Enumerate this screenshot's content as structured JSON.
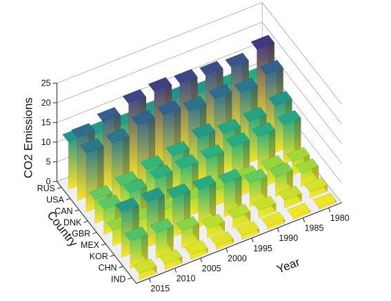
{
  "chart_data": {
    "type": "bar3d",
    "title": "",
    "zlabel": "CO2 Emissions",
    "country_label": "Country",
    "year_label": "Year",
    "zlim": [
      0,
      25
    ],
    "z_ticks": [
      "0",
      "5",
      "10",
      "15",
      "20",
      "25"
    ],
    "grid": true,
    "colormap": "viridis",
    "countries": [
      "RUS",
      "USA",
      "CAN",
      "DNK",
      "GBR",
      "MEX",
      "KOR",
      "CHN",
      "IND"
    ],
    "years": [
      "1980",
      "1985",
      "1990",
      "1995",
      "2000",
      "2005",
      "2010",
      "2015"
    ],
    "year_ticks": [
      "1980",
      "1985",
      "1990",
      "1995",
      "2000",
      "2005",
      "2010",
      "2015"
    ],
    "series": [
      {
        "name": "RUS",
        "values": [
          9.5,
          10.5,
          11.5,
          12.5,
          11.5,
          11.0,
          11.5,
          12.0
        ]
      },
      {
        "name": "USA",
        "values": [
          20.5,
          18.5,
          19.0,
          19.5,
          20.0,
          19.5,
          17.5,
          16.0
        ]
      },
      {
        "name": "CAN",
        "values": [
          17.0,
          15.0,
          16.0,
          15.5,
          17.0,
          17.0,
          15.0,
          15.0
        ]
      },
      {
        "name": "DNK",
        "values": [
          12.0,
          10.5,
          10.0,
          11.5,
          9.5,
          8.5,
          7.0,
          6.0
        ]
      },
      {
        "name": "GBR",
        "values": [
          10.0,
          9.5,
          9.5,
          9.0,
          9.0,
          9.0,
          8.0,
          6.5
        ]
      },
      {
        "name": "MEX",
        "values": [
          3.5,
          4.0,
          4.0,
          4.0,
          4.0,
          4.0,
          4.0,
          4.0
        ]
      },
      {
        "name": "KOR",
        "values": [
          3.5,
          5.0,
          6.0,
          8.5,
          9.5,
          10.0,
          11.5,
          11.5
        ]
      },
      {
        "name": "CHN",
        "values": [
          1.5,
          2.0,
          2.0,
          2.5,
          2.5,
          4.5,
          6.5,
          7.0
        ]
      },
      {
        "name": "IND",
        "values": [
          0.5,
          0.5,
          0.8,
          1.0,
          1.0,
          1.2,
          1.5,
          1.7
        ]
      }
    ]
  }
}
